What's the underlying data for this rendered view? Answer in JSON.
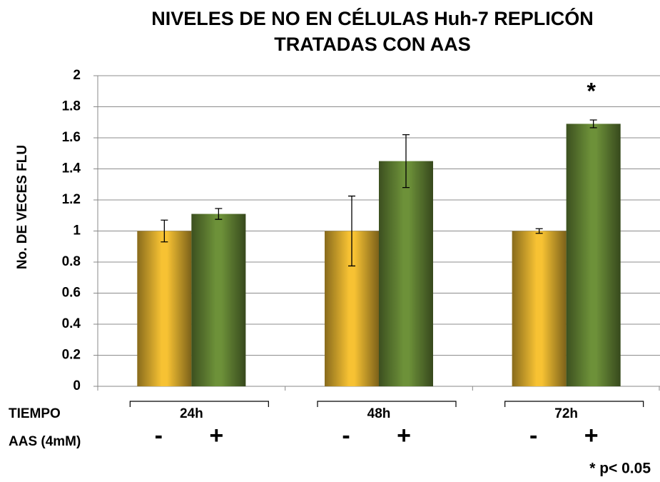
{
  "chart_data": {
    "type": "bar",
    "title": [
      "NIVELES DE NO EN CÉLULAS Huh-7 REPLICÓN",
      "TRATADAS CON AAS"
    ],
    "ylabel": "No. DE VECES FLU",
    "row_labels": [
      "TIEMPO",
      "AAS (4mM)"
    ],
    "categories": [
      "24h",
      "48h",
      "72h"
    ],
    "series": [
      {
        "name": "-",
        "color": "#f7c233",
        "values": [
          1,
          1,
          1
        ],
        "errors": [
          0.07,
          0.225,
          0.015
        ]
      },
      {
        "name": "+",
        "color": "#6d9139",
        "values": [
          1.11,
          1.45,
          1.69
        ],
        "errors": [
          0.035,
          0.17,
          0.025
        ]
      }
    ],
    "ylim": [
      0,
      2
    ],
    "yticks": [
      0,
      0.2,
      0.4,
      0.6,
      0.8,
      1,
      1.2,
      1.4,
      1.6,
      1.8,
      2
    ],
    "grid": true,
    "annotation": "*",
    "footnote": "* p< 0.05"
  }
}
